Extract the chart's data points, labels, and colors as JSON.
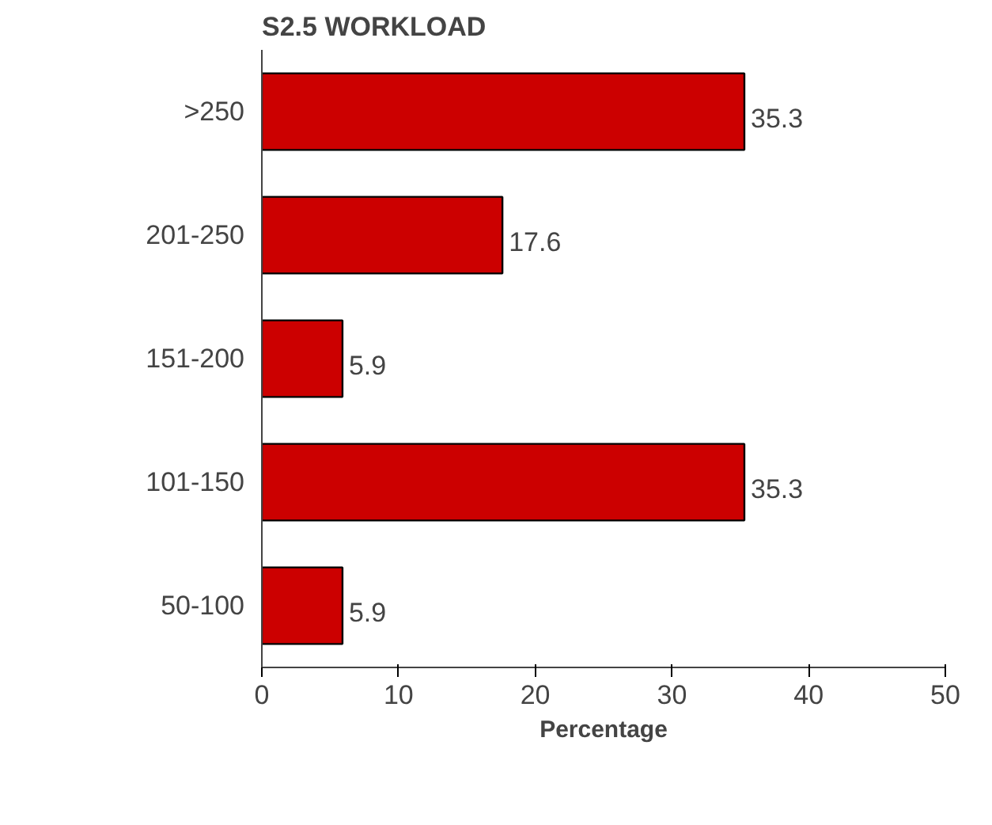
{
  "chart_data": {
    "type": "bar",
    "orientation": "horizontal",
    "title": "S2.5  WORKLOAD",
    "xlabel": "Percentage",
    "categories": [
      ">250",
      "201-250",
      "151-200",
      "101-150",
      "50-100"
    ],
    "values": [
      35.3,
      17.6,
      5.9,
      35.3,
      5.9
    ],
    "color": "#cc0000",
    "xlim": [
      0,
      50
    ],
    "xticks": [
      0,
      10,
      20,
      30,
      40,
      50
    ],
    "data_labels": true,
    "grid": false
  }
}
